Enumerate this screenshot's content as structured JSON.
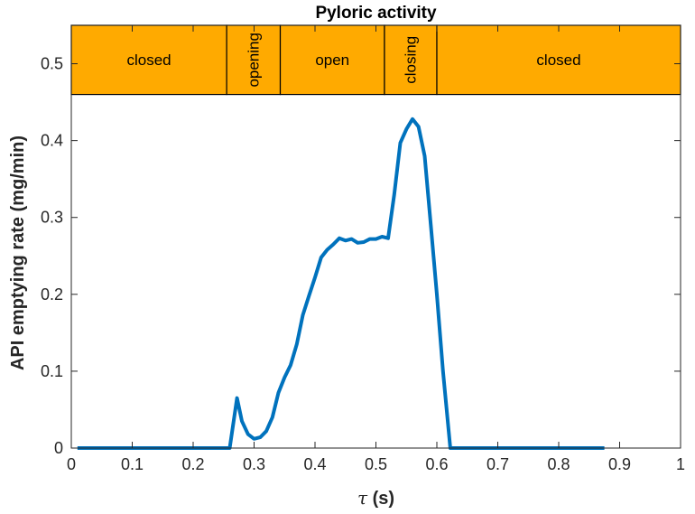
{
  "chart_data": {
    "type": "line",
    "title": "Pyloric activity",
    "xlabel_symbol": "τ",
    "xlabel_unit": " (s)",
    "ylabel": "API emptying rate (mg/min)",
    "xlim": [
      0,
      1
    ],
    "ylim": [
      0,
      0.55
    ],
    "xticks": [
      0,
      0.1,
      0.2,
      0.3,
      0.4,
      0.5,
      0.6,
      0.7,
      0.8,
      0.9,
      1
    ],
    "xtick_labels": [
      "0",
      "0.1",
      "0.2",
      "0.3",
      "0.4",
      "0.5",
      "0.6",
      "0.7",
      "0.8",
      "0.9",
      "1"
    ],
    "yticks": [
      0,
      0.1,
      0.2,
      0.3,
      0.4,
      0.5
    ],
    "ytick_labels": [
      "0",
      "0.1",
      "0.2",
      "0.3",
      "0.4",
      "0.5"
    ],
    "grid": false,
    "line_color": "#0072BD",
    "phase_color": "#FFAA00",
    "phase_band": {
      "y_from": 0.46,
      "y_to": 0.55
    },
    "phases": [
      {
        "label": "closed",
        "start": 0,
        "end": 0.255,
        "vertical": false
      },
      {
        "label": "opening",
        "start": 0.255,
        "end": 0.343,
        "vertical": true
      },
      {
        "label": "open",
        "start": 0.343,
        "end": 0.514,
        "vertical": false
      },
      {
        "label": "closing",
        "start": 0.514,
        "end": 0.6,
        "vertical": true
      },
      {
        "label": "closed",
        "start": 0.6,
        "end": 1,
        "vertical": false
      }
    ],
    "series": [
      {
        "x": [
          0.01,
          0.1,
          0.2,
          0.255,
          0.26,
          0.272,
          0.28,
          0.29,
          0.3,
          0.31,
          0.32,
          0.33,
          0.34,
          0.35,
          0.36,
          0.37,
          0.38,
          0.39,
          0.4,
          0.41,
          0.42,
          0.43,
          0.44,
          0.45,
          0.46,
          0.47,
          0.48,
          0.49,
          0.5,
          0.51,
          0.52,
          0.53,
          0.54,
          0.55,
          0.56,
          0.57,
          0.58,
          0.59,
          0.6,
          0.61,
          0.622,
          0.7,
          0.8,
          0.875
        ],
        "y": [
          0,
          0,
          0,
          0,
          0,
          0.065,
          0.035,
          0.018,
          0.012,
          0.014,
          0.022,
          0.04,
          0.072,
          0.092,
          0.108,
          0.135,
          0.173,
          0.198,
          0.222,
          0.248,
          0.258,
          0.265,
          0.273,
          0.27,
          0.272,
          0.267,
          0.268,
          0.272,
          0.272,
          0.275,
          0.273,
          0.33,
          0.397,
          0.415,
          0.428,
          0.418,
          0.38,
          0.29,
          0.2,
          0.1,
          0,
          0,
          0,
          0
        ]
      }
    ]
  }
}
